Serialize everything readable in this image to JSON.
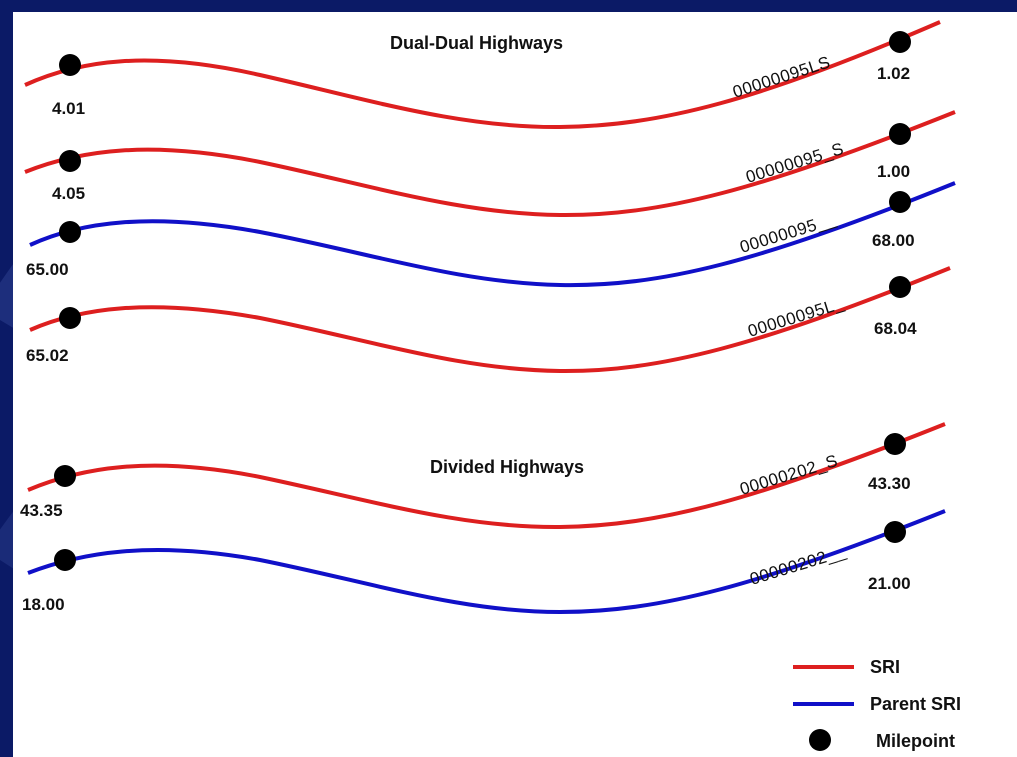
{
  "colors": {
    "background": "#0b1a66",
    "panel": "#ffffff",
    "sri": "#dd1f1f",
    "parent_sri": "#1010c8",
    "milepoint": "#000000"
  },
  "headings": {
    "dual_dual": "Dual-Dual Highways",
    "divided": "Divided Highways"
  },
  "roads": [
    {
      "type": "sri",
      "route": "00000095LS",
      "start_mp": "4.01",
      "end_mp": "1.02"
    },
    {
      "type": "sri",
      "route": "00000095_S",
      "start_mp": "4.05",
      "end_mp": "1.00"
    },
    {
      "type": "parent_sri",
      "route": "00000095__",
      "start_mp": "65.00",
      "end_mp": "68.00"
    },
    {
      "type": "sri",
      "route": "00000095L_",
      "start_mp": "65.02",
      "end_mp": "68.04"
    },
    {
      "type": "sri",
      "route": "00000202_S",
      "start_mp": "43.35",
      "end_mp": "43.30"
    },
    {
      "type": "parent_sri",
      "route": "00000202__",
      "start_mp": "18.00",
      "end_mp": "21.00"
    }
  ],
  "legend": {
    "sri": "SRI",
    "parent_sri": "Parent SRI",
    "milepoint": "Milepoint"
  }
}
